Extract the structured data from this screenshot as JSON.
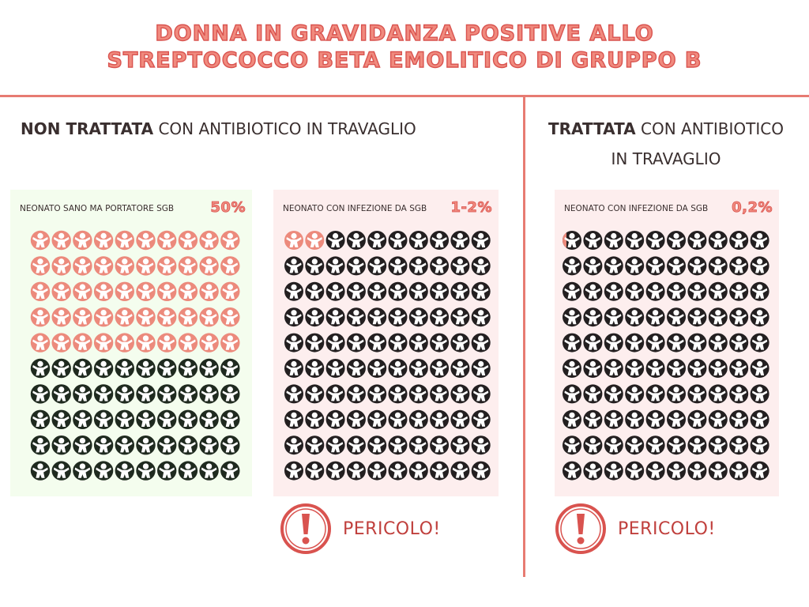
{
  "header": {
    "title_line1": "DONNA IN GRAVIDANZA POSITIVE ALLO",
    "title_line2": "STREPTOCOCCO BETA EMOLITICO DI GRUPPO B"
  },
  "colors": {
    "accent": "#e77b72",
    "highlight_icon": "#ec8a7c",
    "dark_icon": "#231f20",
    "dark_green_icon": "#1f2a1f"
  },
  "sections": {
    "untreated": {
      "heading_bold": "NON TRATTATA",
      "heading_rest": " CON ANTIBIOTICO IN TRAVAGLIO"
    },
    "treated": {
      "heading_bold": "TRATTATA",
      "heading_rest": " CON ANTIBIOTICO",
      "heading_line2": "IN TRAVAGLIO"
    }
  },
  "panels": [
    {
      "label": "NEONATO SANO MA PORTATORE SGB",
      "percent": "50%",
      "highlighted_fraction": 0.5,
      "bg": "#f4fdee",
      "base_icon_color": "#1f2a1f"
    },
    {
      "label": "NEONATO CON INFEZIONE DA SGB",
      "percent": "1-2%",
      "highlighted_fraction": 0.02,
      "bg": "#fdeeee",
      "base_icon_color": "#231f20"
    },
    {
      "label": "NEONATO CON INFEZIONE DA SGB",
      "percent": "0,2%",
      "highlighted_fraction": 0.002,
      "bg": "#fdeeee",
      "base_icon_color": "#231f20"
    }
  ],
  "warnings": [
    {
      "label": "PERICOLO!",
      "icon": "exclamation-circle-icon"
    },
    {
      "label": "PERICOLO!",
      "icon": "exclamation-circle-icon"
    }
  ]
}
